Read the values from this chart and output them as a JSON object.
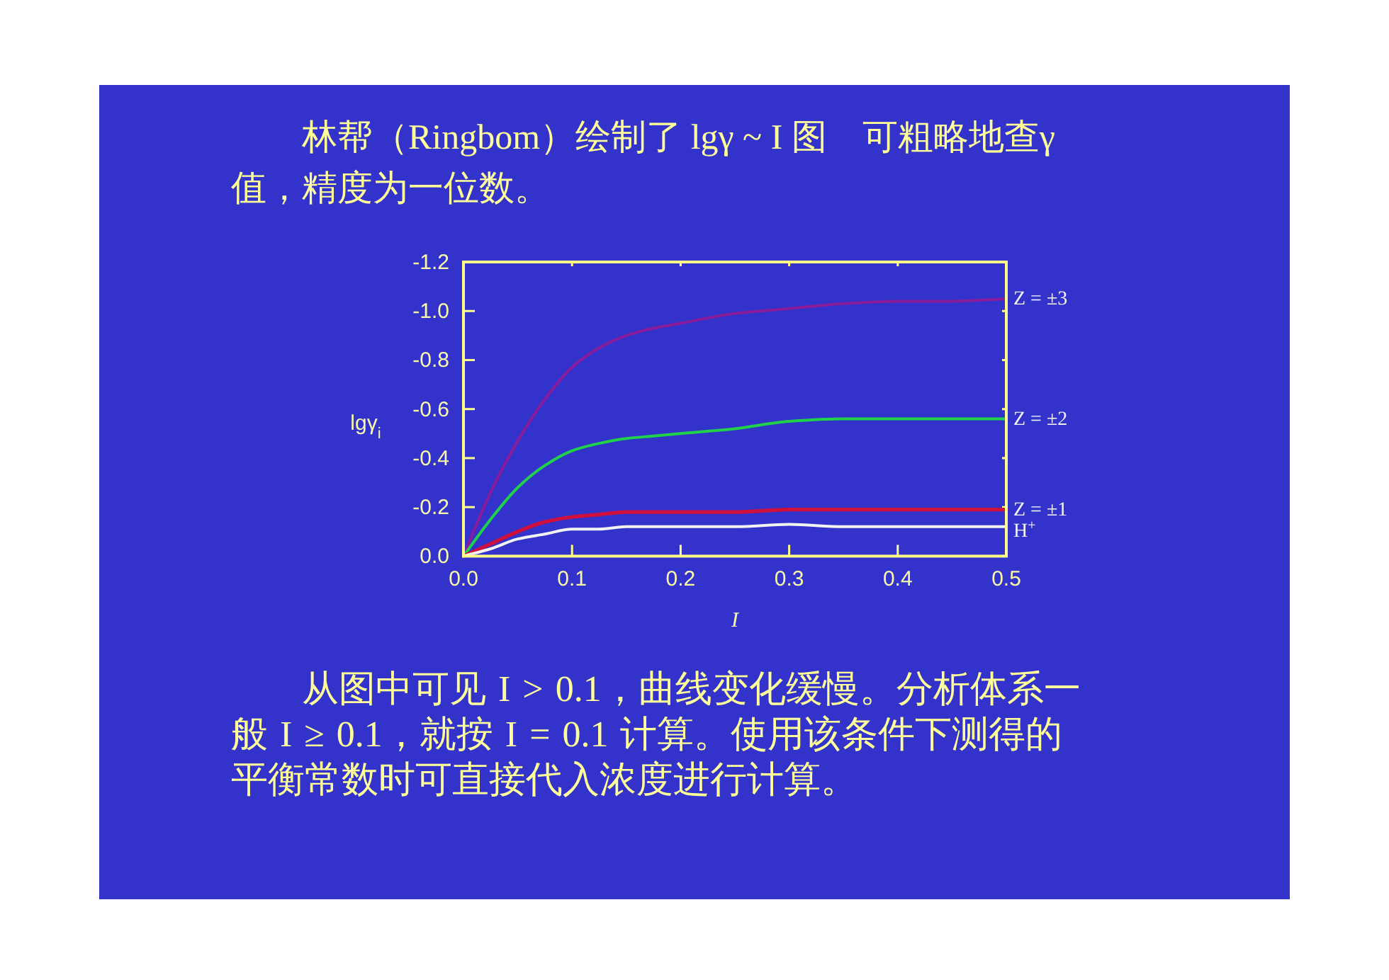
{
  "chart_data": {
    "type": "line",
    "title": "林帮（Ringbom）绘制了 lgγ ~ I 图　可粗略地查γ值，精度为一位数。",
    "xlabel": "I",
    "ylabel": "lgγ$_{i}$",
    "x": [
      0,
      0.025,
      0.05,
      0.075,
      0.1,
      0.125,
      0.15,
      0.175,
      0.2,
      0.25,
      0.3,
      0.35,
      0.4,
      0.45,
      0.5
    ],
    "series": [
      {
        "name": "Z = ±3",
        "color": "#8a1c9c",
        "values": [
          0,
          -0.26,
          -0.47,
          -0.64,
          -0.77,
          -0.85,
          -0.9,
          -0.93,
          -0.95,
          -0.99,
          -1.01,
          -1.03,
          -1.04,
          -1.04,
          -1.05
        ]
      },
      {
        "name": "Z = ±2",
        "color": "#1fd24a",
        "values": [
          0,
          -0.15,
          -0.28,
          -0.37,
          -0.43,
          -0.46,
          -0.48,
          -0.49,
          -0.5,
          -0.52,
          -0.55,
          -0.56,
          -0.56,
          -0.56,
          -0.56
        ]
      },
      {
        "name": "Z = ±1",
        "color": "#d0103c",
        "values": [
          0,
          -0.05,
          -0.1,
          -0.14,
          -0.16,
          -0.17,
          -0.18,
          -0.18,
          -0.18,
          -0.18,
          -0.19,
          -0.19,
          -0.19,
          -0.19,
          -0.19
        ]
      },
      {
        "name": "H$^{+}$",
        "color": "#f2f2f2",
        "values": [
          0,
          -0.03,
          -0.07,
          -0.09,
          -0.11,
          -0.11,
          -0.12,
          -0.12,
          -0.12,
          -0.12,
          -0.13,
          -0.12,
          -0.12,
          -0.12,
          -0.12
        ]
      }
    ],
    "xlim": [
      0,
      0.5
    ],
    "ylim": [
      0,
      -1.2
    ],
    "xticks": [
      {
        "value": 0,
        "label": "0.0"
      },
      0.1,
      0.2,
      0.3,
      0.4,
      0.5
    ],
    "yticks": [
      {
        "value": 0,
        "label": "0.0"
      },
      -0.2,
      -0.4,
      -0.6,
      -0.8,
      {
        "value": -1,
        "label": "-1.0"
      },
      -1.2
    ],
    "annotations": [
      "从图中可见 I > 0.1，曲线变化缓慢。分析体系一般 I ≥ 0.1，就按 I = 0.1 计算。使用该条件下测得的平衡常数时可直接代入浓度进行计算。"
    ]
  }
}
